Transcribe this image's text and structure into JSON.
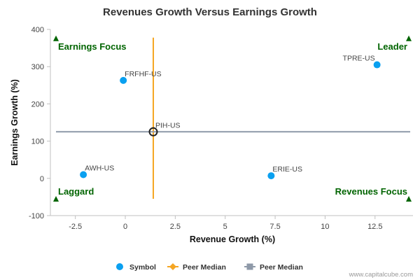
{
  "chart_data": {
    "type": "scatter",
    "title": "Revenues Growth Versus Earnings Growth",
    "xlabel": "Revenue Growth (%)",
    "ylabel": "Earnings Growth (%)",
    "xlim": [
      -3.75,
      14.4
    ],
    "ylim": [
      -100,
      400
    ],
    "xticks": [
      -2.5,
      0,
      2.5,
      5,
      7.5,
      10,
      12.5
    ],
    "xtick_labels": [
      "-2.5",
      "0",
      "2.5",
      "5",
      "7.5",
      "10",
      "12.5"
    ],
    "yticks": [
      -100,
      0,
      100,
      200,
      300,
      400
    ],
    "ytick_labels": [
      "-100",
      "0",
      "100",
      "200",
      "300",
      "400"
    ],
    "grid": false,
    "points": [
      {
        "label": "FRFHF-US",
        "x": -0.1,
        "y": 263
      },
      {
        "label": "TPRE-US",
        "x": 12.6,
        "y": 305
      },
      {
        "label": "AWH-US",
        "x": -2.1,
        "y": 10
      },
      {
        "label": "ERIE-US",
        "x": 7.3,
        "y": 7
      }
    ],
    "highlight_point": {
      "label": "PIH-US",
      "x": 1.4,
      "y": 125
    },
    "peer_median_x": {
      "value": 1.4,
      "y_range": [
        -55,
        378
      ]
    },
    "peer_median_y": {
      "value": 125
    },
    "quadrant_labels": [
      {
        "text": "Earnings Focus",
        "position": "top-left"
      },
      {
        "text": "Leader",
        "position": "top-right"
      },
      {
        "text": "Laggard",
        "position": "bottom-left"
      },
      {
        "text": "Revenues Focus",
        "position": "bottom-right"
      }
    ],
    "legend": {
      "position": "bottom-center",
      "items": [
        {
          "name": "Symbol",
          "marker": "circle"
        },
        {
          "name": "Peer Median",
          "marker": "diamond-line"
        },
        {
          "name": "Peer Median",
          "marker": "square-line"
        }
      ]
    },
    "colors": {
      "symbol": "#0aa0f0",
      "peer_median_x": "#f5a623",
      "peer_median_y": "#8e99a8",
      "quadrant": "#006400",
      "axis": "#c0c0c0"
    }
  },
  "credit": "www.capitalcube.com"
}
